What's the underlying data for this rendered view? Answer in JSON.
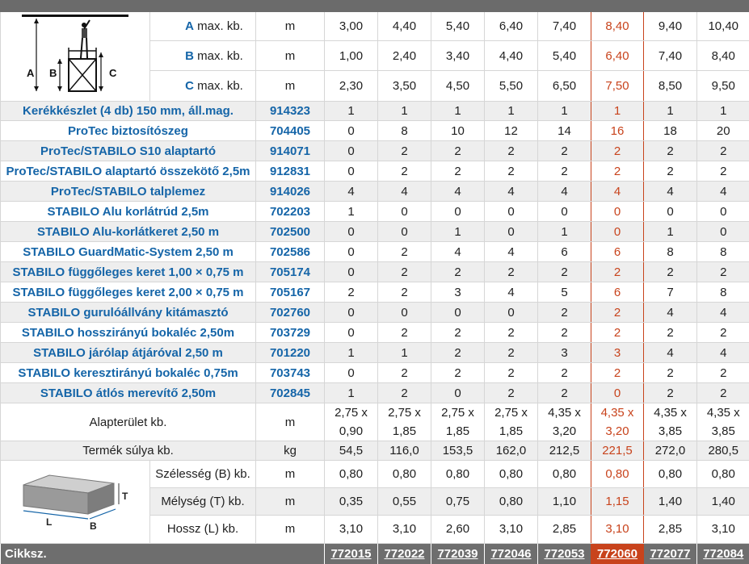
{
  "dims": [
    {
      "letter": "A",
      "label": "max. kb.",
      "unit": "m",
      "values": [
        "3,00",
        "4,40",
        "5,40",
        "6,40",
        "7,40",
        "8,40",
        "9,40",
        "10,40"
      ]
    },
    {
      "letter": "B",
      "label": "max. kb.",
      "unit": "m",
      "values": [
        "1,00",
        "2,40",
        "3,40",
        "4,40",
        "5,40",
        "6,40",
        "7,40",
        "8,40"
      ]
    },
    {
      "letter": "C",
      "label": "max. kb.",
      "unit": "m",
      "values": [
        "2,30",
        "3,50",
        "4,50",
        "5,50",
        "6,50",
        "7,50",
        "8,50",
        "9,50"
      ]
    }
  ],
  "diagram": {
    "a": "A",
    "b": "B",
    "c": "C",
    "t": "T",
    "l": "L",
    "w": "B"
  },
  "components": [
    {
      "name": "Kerékkészlet (4 db) 150 mm, áll.mag.",
      "art": "914323",
      "values": [
        "1",
        "1",
        "1",
        "1",
        "1",
        "1",
        "1",
        "1"
      ]
    },
    {
      "name": "ProTec biztosítószeg",
      "art": "704405",
      "values": [
        "0",
        "8",
        "10",
        "12",
        "14",
        "16",
        "18",
        "20"
      ]
    },
    {
      "name": "ProTec/STABILO S10 alaptartó",
      "art": "914071",
      "values": [
        "0",
        "2",
        "2",
        "2",
        "2",
        "2",
        "2",
        "2"
      ]
    },
    {
      "name": "ProTec/STABILO alaptartó összekötő 2,5m",
      "art": "912831",
      "values": [
        "0",
        "2",
        "2",
        "2",
        "2",
        "2",
        "2",
        "2"
      ]
    },
    {
      "name": "ProTec/STABILO talplemez",
      "art": "914026",
      "values": [
        "4",
        "4",
        "4",
        "4",
        "4",
        "4",
        "4",
        "4"
      ]
    },
    {
      "name": "STABILO Alu korlátrúd 2,5m",
      "art": "702203",
      "values": [
        "1",
        "0",
        "0",
        "0",
        "0",
        "0",
        "0",
        "0"
      ]
    },
    {
      "name": "STABILO Alu-korlátkeret 2,50 m",
      "art": "702500",
      "values": [
        "0",
        "0",
        "1",
        "0",
        "1",
        "0",
        "1",
        "0"
      ]
    },
    {
      "name": "STABILO GuardMatic-System 2,50 m",
      "art": "702586",
      "values": [
        "0",
        "2",
        "4",
        "4",
        "6",
        "6",
        "8",
        "8"
      ]
    },
    {
      "name": "STABILO függőleges keret 1,00 × 0,75 m",
      "art": "705174",
      "values": [
        "0",
        "2",
        "2",
        "2",
        "2",
        "2",
        "2",
        "2"
      ]
    },
    {
      "name": "STABILO függőleges keret 2,00 × 0,75 m",
      "art": "705167",
      "values": [
        "2",
        "2",
        "3",
        "4",
        "5",
        "6",
        "7",
        "8"
      ]
    },
    {
      "name": "STABILO gurulóállvány kitámasztó",
      "art": "702760",
      "values": [
        "0",
        "0",
        "0",
        "0",
        "2",
        "2",
        "4",
        "4"
      ]
    },
    {
      "name": "STABILO hosszirányú bokaléc 2,50m",
      "art": "703729",
      "values": [
        "0",
        "2",
        "2",
        "2",
        "2",
        "2",
        "2",
        "2"
      ]
    },
    {
      "name": "STABILO járólap átjáróval 2,50 m",
      "art": "701220",
      "values": [
        "1",
        "1",
        "2",
        "2",
        "3",
        "3",
        "4",
        "4"
      ]
    },
    {
      "name": "STABILO keresztirányú bokaléc 0,75m",
      "art": "703743",
      "values": [
        "0",
        "2",
        "2",
        "2",
        "2",
        "2",
        "2",
        "2"
      ]
    },
    {
      "name": "STABILO átlós merevítő 2,50m",
      "art": "702845",
      "values": [
        "1",
        "2",
        "0",
        "2",
        "2",
        "0",
        "2",
        "2"
      ]
    }
  ],
  "area": {
    "label": "Alapterület kb.",
    "unit": "m",
    "top": [
      "2,75 x",
      "2,75 x",
      "2,75 x",
      "2,75 x",
      "4,35 x",
      "4,35 x",
      "4,35 x",
      "4,35 x"
    ],
    "bottom": [
      "0,90",
      "1,85",
      "1,85",
      "1,85",
      "3,20",
      "3,20",
      "3,85",
      "3,85"
    ]
  },
  "weight": {
    "label": "Termék súlya kb.",
    "unit": "kg",
    "values": [
      "54,5",
      "116,0",
      "153,5",
      "162,0",
      "212,5",
      "221,5",
      "272,0",
      "280,5"
    ]
  },
  "pack": [
    {
      "label": "Szélesség (B) kb.",
      "unit": "m",
      "values": [
        "0,80",
        "0,80",
        "0,80",
        "0,80",
        "0,80",
        "0,80",
        "0,80",
        "0,80"
      ]
    },
    {
      "label": "Mélység (T) kb.",
      "unit": "m",
      "values": [
        "0,35",
        "0,55",
        "0,75",
        "0,80",
        "1,10",
        "1,15",
        "1,40",
        "1,40"
      ]
    },
    {
      "label": "Hossz (L) kb.",
      "unit": "m",
      "values": [
        "3,10",
        "3,10",
        "2,60",
        "3,10",
        "2,85",
        "3,10",
        "2,85",
        "3,10"
      ]
    }
  ],
  "footer": {
    "label": "Cikksz.",
    "codes": [
      "772015",
      "772022",
      "772039",
      "772046",
      "772053",
      "772060",
      "772077",
      "772084"
    ]
  },
  "colors": {
    "blue": "#1565a8",
    "highlight": "#c8431c",
    "grey": "#6e6e6e"
  }
}
